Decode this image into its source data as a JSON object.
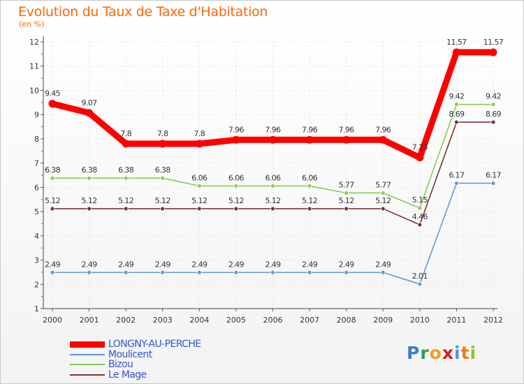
{
  "title": "Evolution du Taux de Taxe d'Habitation",
  "subtitle": "(en %)",
  "logo": {
    "chars": [
      "P",
      "r",
      "o",
      "x",
      "i",
      "t",
      "i"
    ],
    "colors": [
      "#3a7fc4",
      "#2e9e4a",
      "#f0a020",
      "#d02020",
      "#4a9ad8",
      "#f07a10",
      "#8fc030"
    ]
  },
  "chart_data": {
    "type": "line",
    "title": "Evolution du Taux de Taxe d'Habitation",
    "ylabel": "(en %)",
    "ylim": [
      1,
      12
    ],
    "yticks": [
      "1",
      "2",
      "3",
      "4",
      "5",
      "6",
      "7",
      "8",
      "9",
      "10",
      "11",
      "12"
    ],
    "categories": [
      "2000",
      "2001",
      "2002",
      "2003",
      "2004",
      "2005",
      "2006",
      "2007",
      "2008",
      "2009",
      "2010",
      "2011",
      "2012"
    ],
    "series": [
      {
        "name": "LONGNY-AU-PERCHE",
        "color": "#ff0000",
        "emphasis": true,
        "values": [
          9.45,
          9.07,
          7.8,
          7.8,
          7.8,
          7.96,
          7.96,
          7.96,
          7.96,
          7.96,
          7.23,
          11.57,
          11.57
        ],
        "labels": [
          "9.45",
          "9.07",
          "7.8",
          "7.8",
          "7.8",
          "7.96",
          "7.96",
          "7.96",
          "7.96",
          "7.96",
          "7.23",
          "11.57",
          "11.57"
        ]
      },
      {
        "name": "Moulicent",
        "color": "#6699cc",
        "values": [
          2.49,
          2.49,
          2.49,
          2.49,
          2.49,
          2.49,
          2.49,
          2.49,
          2.49,
          2.49,
          2.01,
          6.17,
          6.17
        ],
        "labels": [
          "2.49",
          "2.49",
          "2.49",
          "2.49",
          "2.49",
          "2.49",
          "2.49",
          "2.49",
          "2.49",
          "2.49",
          "2.01",
          "6.17",
          "6.17"
        ]
      },
      {
        "name": "Bizou",
        "color": "#88cc55",
        "values": [
          6.38,
          6.38,
          6.38,
          6.38,
          6.06,
          6.06,
          6.06,
          6.06,
          5.77,
          5.77,
          5.15,
          9.42,
          9.42
        ],
        "labels": [
          "6.38",
          "6.38",
          "6.38",
          "6.38",
          "6.06",
          "6.06",
          "6.06",
          "6.06",
          "5.77",
          "5.77",
          "5.15",
          "9.42",
          "9.42"
        ]
      },
      {
        "name": "Le Mage",
        "color": "#773333",
        "values": [
          5.12,
          5.12,
          5.12,
          5.12,
          5.12,
          5.12,
          5.12,
          5.12,
          5.12,
          5.12,
          4.46,
          8.69,
          8.69
        ],
        "labels": [
          "5.12",
          "5.12",
          "5.12",
          "5.12",
          "5.12",
          "5.12",
          "5.12",
          "5.12",
          "5.12",
          "5.12",
          "4.46",
          "8.69",
          "8.69"
        ]
      }
    ]
  }
}
